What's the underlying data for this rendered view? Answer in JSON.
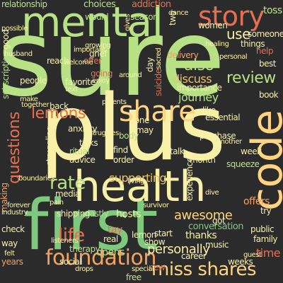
{
  "palette": {
    "background": "#2b2b2b",
    "light_green": "#b8e186",
    "green": "#7fc97f",
    "yellow": "#ffd37f",
    "orange": "#f4a261",
    "red": "#e76f51",
    "pale_yellow": "#f7f0a6",
    "tan": "#e9c46a"
  },
  "words": {
    "sure": "sure",
    "plus": "plus",
    "first": "first",
    "health": "health",
    "mental": "mental",
    "code": "code",
    "story": "story",
    "share": "share",
    "foundation": "foundation",
    "miss_shares": "miss shares",
    "review": "review",
    "lemons": "lemons",
    "rate": "rate",
    "questions": "questions",
    "life": "life",
    "awesome": "awesome",
    "supporting": "supporting",
    "personally": "personally",
    "journey": "journey",
    "discuss": "discuss",
    "also": "also",
    "use": "use",
    "choices": "choices",
    "addiction": "addiction",
    "relationship": "relationship",
    "toss": "toss",
    "offers": "offers",
    "time": "time",
    "therapy": "therapy",
    "conversation": "conversation",
    "thanks": "thanks",
    "hosts": "hosts",
    "lastly": "lastly",
    "shipping": "shipping",
    "check": "check",
    "social": "social",
    "opens": "opens",
    "tay": "tay",
    "real": "real",
    "show": "show",
    "media": "media",
    "anxiety": "anxiety",
    "ritual": "ritual",
    "advice": "advice",
    "order": "order",
    "find": "find",
    "body": "body",
    "one": "one",
    "may": "may",
    "talk": "talk",
    "week": "week",
    "month": "month",
    "purchase": "purchase",
    "squeeze": "squeeze",
    "like": "like",
    "essential": "essential",
    "importance": "importance",
    "delivery": "delivery",
    "grief": "grief",
    "reach": "reach",
    "people": "people",
    "back": "back",
    "would": "would",
    "season": "season",
    "women": "women",
    "someone": "someone",
    "things": "things",
    "help": "help",
    "best": "best",
    "offer": "offer",
    "book": "book",
    "going": "going",
    "favorite": "favorite",
    "try": "try",
    "public": "public",
    "family": "family",
    "way": "way",
    "years": "years",
    "free": "free",
    "music": "music",
    "career": "career",
    "lemon": "lemon",
    "start": "start",
    "got": "got",
    "new": "new",
    "weeks": "weeks",
    "guest": "guest",
    "struggling": "struggling",
    "making": "making",
    "two": "two",
    "day": "day",
    "sacred": "sacred",
    "good": "good",
    "dive": "dive",
    "experience": "experience",
    "suicide": "suicide",
    "another": "another",
    "make": "make",
    "talks": "talks",
    "text": "text",
    "survivor": "survivor",
    "gives": "gives",
    "together": "together",
    "subscription": "subscription",
    "struggles": "struggles",
    "industry": "industry",
    "pain": "pain",
    "listeners": "listeners",
    "possible": "possible",
    "husband": "husband",
    "welcome": "welcome",
    "enjoy": "enjoy",
    "growing": "growing",
    "around": "around",
    "parents": "parents",
    "personal": "personal",
    "healing": "healing",
    "important": "important",
    "forever": "forever",
    "boundaries": "boundaries",
    "living": "living",
    "felt": "felt",
    "special": "special",
    "drops": "drops",
    "dance": "dance"
  }
}
